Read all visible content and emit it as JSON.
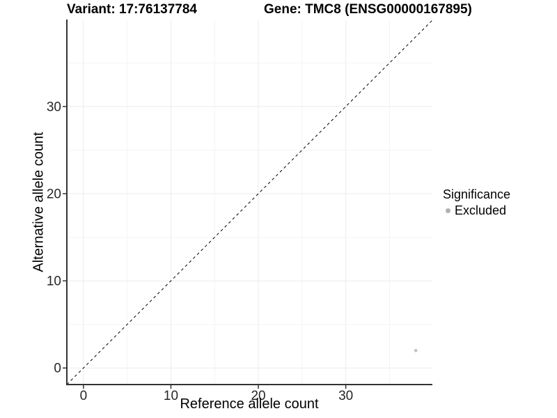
{
  "chart_data": {
    "type": "scatter",
    "title_left": "Variant: 17:76137784",
    "title_right": "Gene: TMC8 (ENSG00000167895)",
    "xlabel": "Reference allele count",
    "ylabel": "Alternative allele count",
    "xlim": [
      -1.9,
      39.9
    ],
    "ylim": [
      -1.9,
      39.9
    ],
    "x_ticks": [
      0,
      10,
      20,
      30
    ],
    "y_ticks": [
      0,
      10,
      20,
      30
    ],
    "minor_grid_step": 5,
    "grid": "major+minor",
    "legend_position": "right",
    "identity_line": {
      "type": "abline",
      "slope": 1,
      "intercept": 0,
      "style": "dashed",
      "color": "#000000"
    },
    "series": [
      {
        "name": "Excluded",
        "color": "#c5c5c5",
        "point_radius": 2.4,
        "points": [
          {
            "x": 38,
            "y": 2
          }
        ]
      }
    ],
    "legend": {
      "title": "Significance",
      "items": [
        {
          "label": "Excluded",
          "color": "#b0b0b0"
        }
      ]
    }
  },
  "colors": {
    "background": "#ffffff",
    "grid_major": "#ebebeb",
    "grid_minor": "#f4f4f4",
    "axis_line": "#333333",
    "tick_mark": "#333333",
    "tick_label": "#262626",
    "title_text": "#000000"
  }
}
